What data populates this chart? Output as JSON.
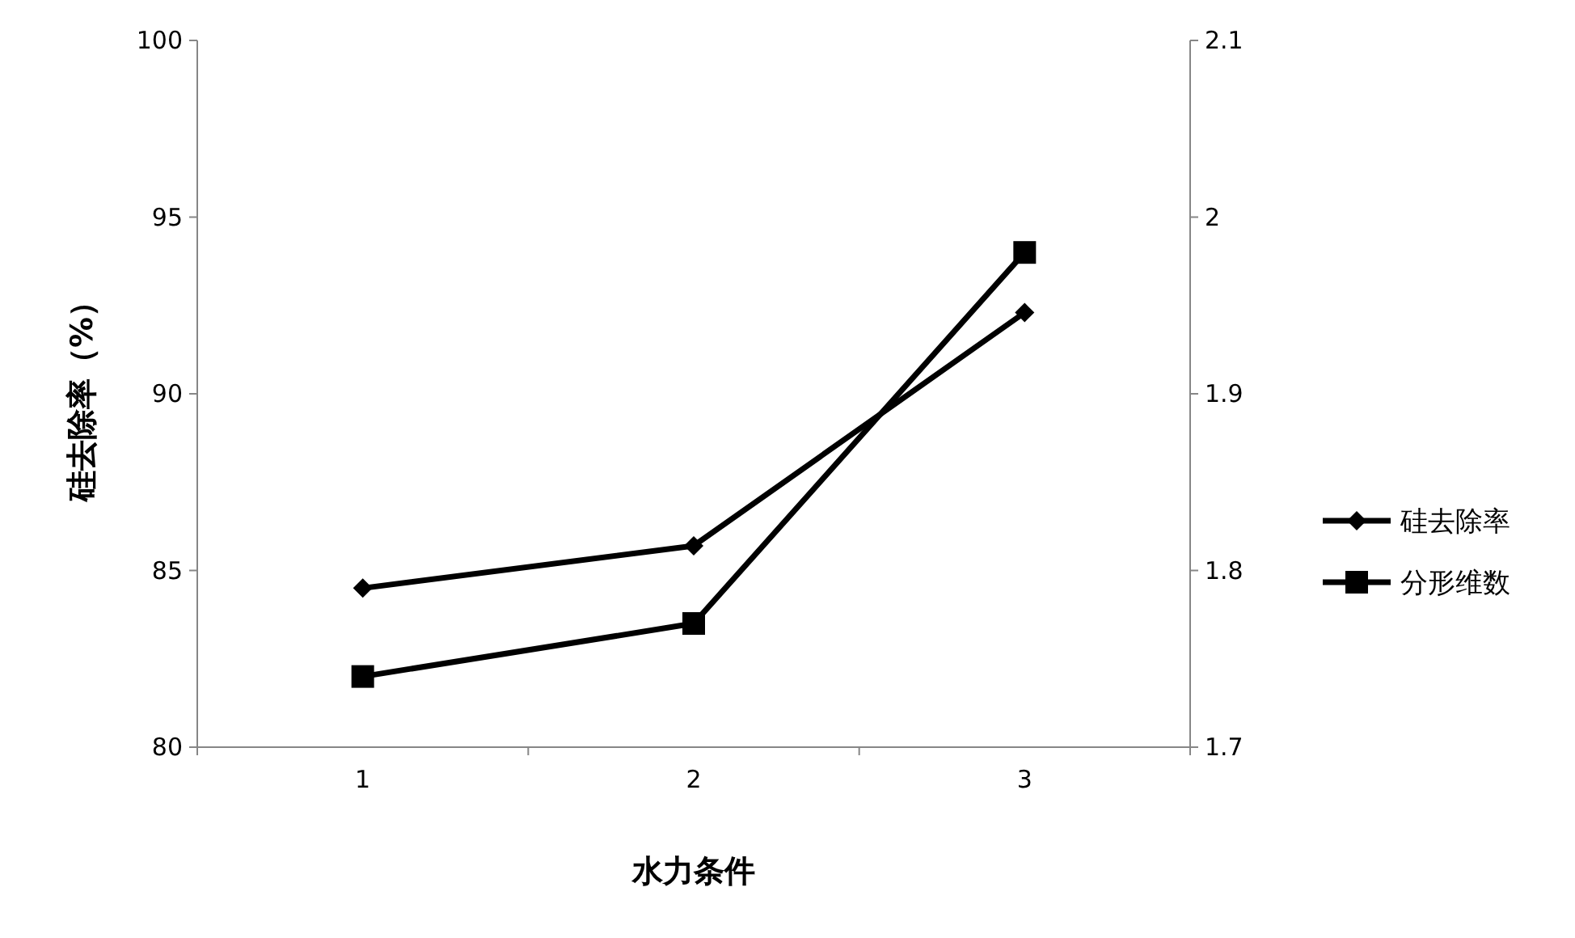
{
  "chart_data": {
    "type": "line",
    "xlabel": "水力条件",
    "ylabel": "硅去除率（%）",
    "categories": [
      "1",
      "2",
      "3"
    ],
    "series": [
      {
        "name": "硅去除率",
        "color": "#000000",
        "marker": "diamond",
        "values": [
          84.5,
          85.7,
          92.3
        ]
      },
      {
        "name": "分形维数",
        "color": "#000000",
        "marker": "square",
        "axis": "y2",
        "values": [
          1.74,
          1.77,
          1.98
        ]
      }
    ],
    "ylim": [
      80,
      100
    ],
    "yticks": [
      80,
      85,
      90,
      95,
      100
    ],
    "y2lim": [
      1.7,
      2.1
    ],
    "y2ticks": [
      1.7,
      1.8,
      1.9,
      2,
      2.1
    ],
    "grid": false,
    "legend": "right",
    "line_style": "solid"
  }
}
